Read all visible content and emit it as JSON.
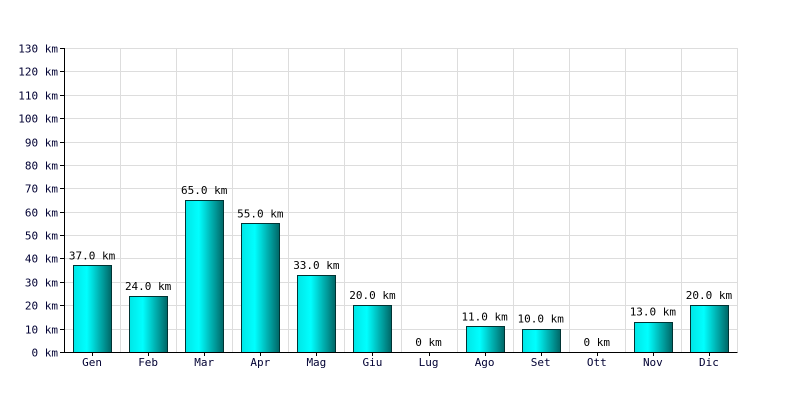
{
  "chart_data": {
    "type": "bar",
    "title": "",
    "xlabel": "",
    "ylabel": "",
    "unit": "km",
    "categories": [
      "Gen",
      "Feb",
      "Mar",
      "Apr",
      "Mag",
      "Giu",
      "Lug",
      "Ago",
      "Set",
      "Ott",
      "Nov",
      "Dic"
    ],
    "values": [
      37.0,
      24.0,
      65.0,
      55.0,
      33.0,
      20.0,
      0,
      11.0,
      10.0,
      0,
      13.0,
      20.0
    ],
    "value_labels": [
      "37.0 km",
      "24.0 km",
      "65.0 km",
      "55.0 km",
      "33.0 km",
      "20.0 km",
      "0 km",
      "11.0 km",
      "10.0 km",
      "0 km",
      "13.0 km",
      "20.0 km"
    ],
    "ylim": [
      0,
      130
    ],
    "y_ticks": [
      0,
      10,
      20,
      30,
      40,
      50,
      60,
      70,
      80,
      90,
      100,
      110,
      120,
      130
    ],
    "y_tick_labels": [
      "0 km",
      "10 km",
      "20 km",
      "30 km",
      "40 km",
      "50 km",
      "60 km",
      "70 km",
      "80 km",
      "90 km",
      "100 km",
      "110 km",
      "120 km",
      "130 km"
    ],
    "grid": true,
    "legend": "none",
    "colors": {
      "bar_light": "#00ffff",
      "bar_dark": "#008080",
      "bar_stroke": "#003333",
      "grid": "#dddddd",
      "axis": "#000000",
      "tick_text": "#000033"
    }
  }
}
